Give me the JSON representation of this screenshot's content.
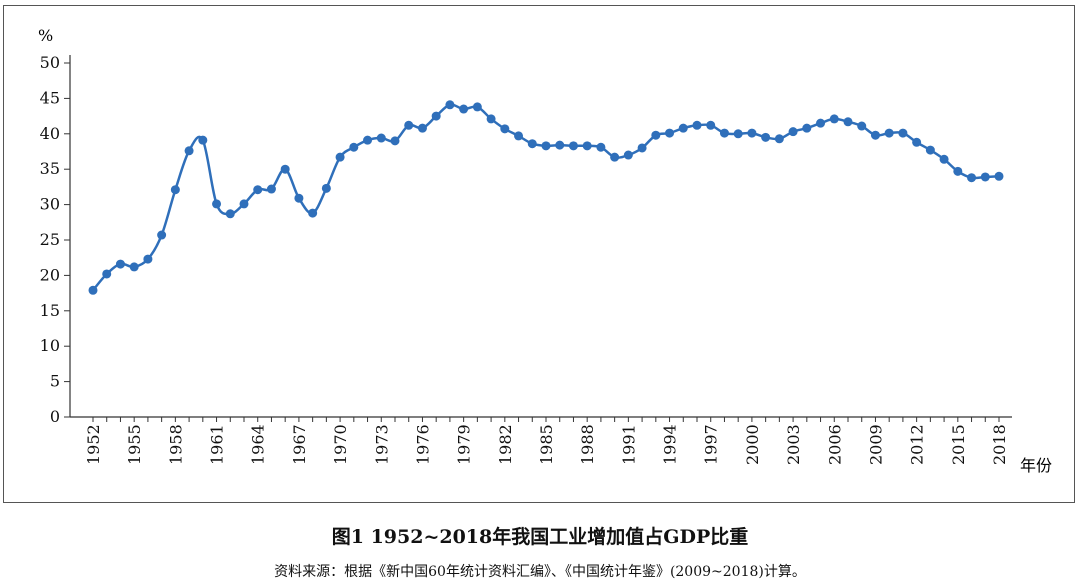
{
  "caption": "图1 1952~2018年我国工业增加值占GDP比重",
  "source": "资料来源：根据《新中国60年统计资料汇编》、《中国统计年鉴》(2009~2018)计算。",
  "chart_data": {
    "type": "line",
    "title": "图1 1952~2018年我国工业增加值占GDP比重",
    "ylabel": "%",
    "xlabel": "年份",
    "ylim": [
      0,
      50
    ],
    "yticks": [
      0,
      5,
      10,
      15,
      20,
      25,
      30,
      35,
      40,
      45,
      50
    ],
    "xticks": [
      1952,
      1955,
      1958,
      1961,
      1964,
      1967,
      1970,
      1973,
      1976,
      1979,
      1982,
      1985,
      1988,
      1991,
      1994,
      1997,
      2000,
      2003,
      2006,
      2009,
      2012,
      2015,
      2018
    ],
    "grid": false,
    "color": "#2f6fba",
    "x": [
      1952,
      1953,
      1954,
      1955,
      1956,
      1957,
      1958,
      1959,
      1960,
      1961,
      1962,
      1963,
      1964,
      1965,
      1966,
      1967,
      1968,
      1969,
      1970,
      1971,
      1972,
      1973,
      1974,
      1975,
      1976,
      1977,
      1978,
      1979,
      1980,
      1981,
      1982,
      1983,
      1984,
      1985,
      1986,
      1987,
      1988,
      1989,
      1990,
      1991,
      1992,
      1993,
      1994,
      1995,
      1996,
      1997,
      1998,
      1999,
      2000,
      2001,
      2002,
      2003,
      2004,
      2005,
      2006,
      2007,
      2008,
      2009,
      2010,
      2011,
      2012,
      2013,
      2014,
      2015,
      2016,
      2017,
      2018
    ],
    "values": [
      17.9,
      20.2,
      21.6,
      21.2,
      22.3,
      25.7,
      32.1,
      37.6,
      39.1,
      30.1,
      28.7,
      30.1,
      32.1,
      32.2,
      35.0,
      30.9,
      28.8,
      32.3,
      36.7,
      38.1,
      39.1,
      39.4,
      39.0,
      41.2,
      40.8,
      42.5,
      44.1,
      43.5,
      43.8,
      42.1,
      40.7,
      39.7,
      38.6,
      38.3,
      38.4,
      38.3,
      38.3,
      38.1,
      36.7,
      37.0,
      38.0,
      39.8,
      40.1,
      40.8,
      41.2,
      41.2,
      40.1,
      40.0,
      40.1,
      39.5,
      39.3,
      40.3,
      40.8,
      41.5,
      42.1,
      41.7,
      41.1,
      39.8,
      40.1,
      40.1,
      38.8,
      37.7,
      36.4,
      34.7,
      33.8,
      33.9,
      34.0
    ]
  }
}
